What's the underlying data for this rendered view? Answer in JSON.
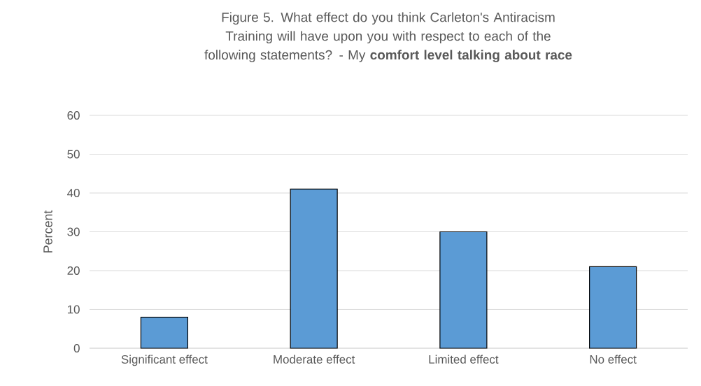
{
  "chart_data": {
    "type": "bar",
    "title": "Figure 5. What effect do you think Carleton's Antiracism Training will have upon you with respect to each of the following statements? - My **comfort level talking about race**",
    "ylabel": "Percent",
    "categories": [
      "Significant effect",
      "Moderate effect",
      "Limited effect",
      "No effect"
    ],
    "values": [
      8,
      41,
      30,
      21
    ],
    "color": "#5b9bd5",
    "ylim": [
      0,
      60
    ],
    "yticks": [
      0,
      10,
      20,
      30,
      40,
      50,
      60
    ],
    "grid": "y"
  }
}
